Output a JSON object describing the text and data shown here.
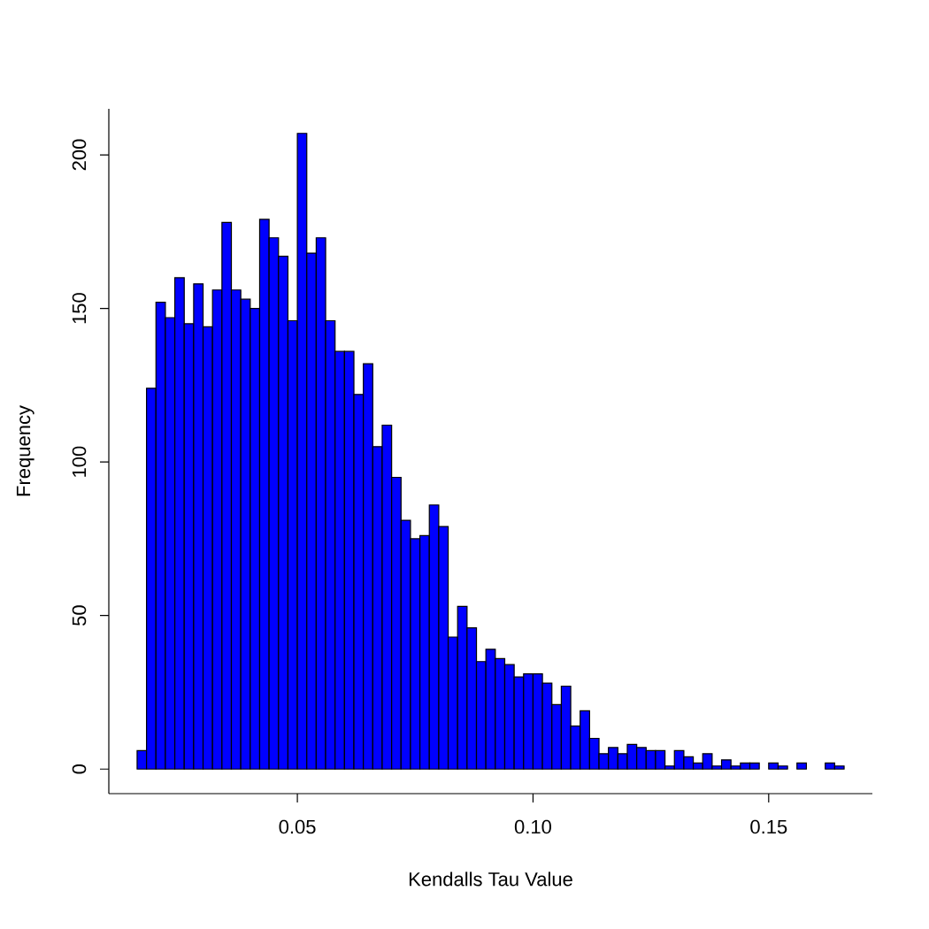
{
  "chart_data": {
    "type": "histogram",
    "xlabel": "Kendalls Tau Value",
    "ylabel": "Frequency",
    "color": "#0000ff",
    "bins": [
      0.016,
      0.018,
      0.02,
      0.022,
      0.024,
      0.026,
      0.028,
      0.03,
      0.032,
      0.034,
      0.036,
      0.038,
      0.04,
      0.042,
      0.044,
      0.046,
      0.048,
      0.05,
      0.052,
      0.054,
      0.056,
      0.058,
      0.06,
      0.062,
      0.064,
      0.066,
      0.068,
      0.07,
      0.072,
      0.074,
      0.076,
      0.078,
      0.08,
      0.082,
      0.084,
      0.086,
      0.088,
      0.09,
      0.092,
      0.094,
      0.096,
      0.098,
      0.1,
      0.102,
      0.104,
      0.106,
      0.108,
      0.11,
      0.112,
      0.114,
      0.116,
      0.118,
      0.12,
      0.122,
      0.124,
      0.126,
      0.128,
      0.13,
      0.132,
      0.134,
      0.136,
      0.138,
      0.14,
      0.142,
      0.144,
      0.146,
      0.148,
      0.15,
      0.152,
      0.154,
      0.156,
      0.158,
      0.16,
      0.162,
      0.164,
      0.166
    ],
    "values": [
      6,
      124,
      152,
      147,
      160,
      145,
      158,
      144,
      156,
      178,
      156,
      153,
      150,
      179,
      173,
      167,
      146,
      207,
      168,
      173,
      146,
      136,
      136,
      122,
      132,
      105,
      112,
      95,
      81,
      75,
      76,
      86,
      79,
      43,
      53,
      46,
      35,
      39,
      36,
      34,
      30,
      31,
      31,
      28,
      21,
      27,
      14,
      19,
      10,
      5,
      7,
      5,
      8,
      7,
      6,
      6,
      1,
      6,
      4,
      2,
      5,
      1,
      3,
      1,
      2,
      2,
      0,
      2,
      1,
      0,
      2,
      0,
      0,
      2,
      1
    ],
    "xlim": [
      0.01,
      0.172
    ],
    "ylim": [
      -8,
      215
    ],
    "xticks": [
      {
        "value": 0.05,
        "label": "0.05"
      },
      {
        "value": 0.1,
        "label": "0.10"
      },
      {
        "value": 0.15,
        "label": "0.15"
      }
    ],
    "yticks": [
      0,
      50,
      100,
      150,
      200
    ]
  }
}
